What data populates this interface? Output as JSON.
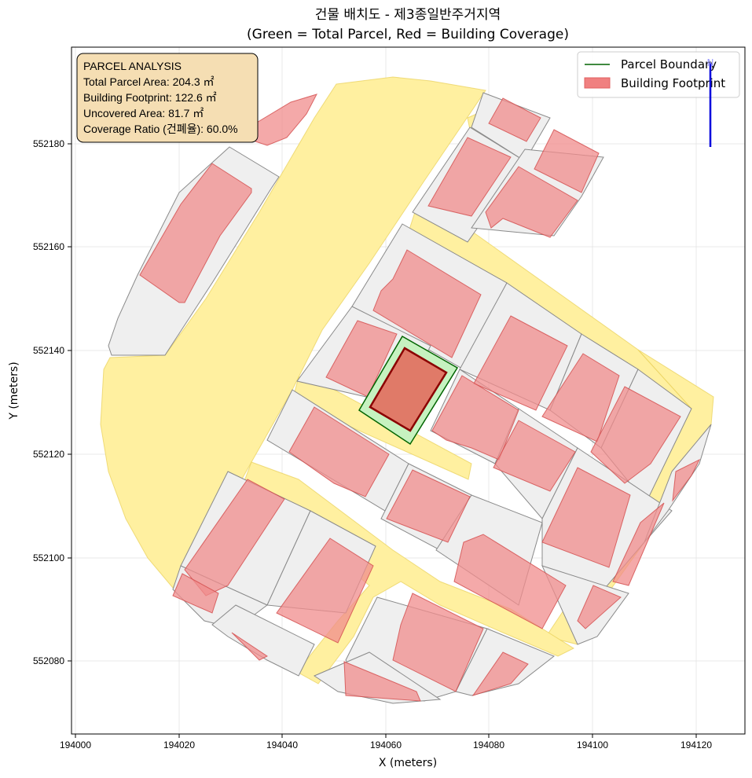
{
  "title": {
    "line1": "건물 배치도 - 제3종일반주거지역",
    "line2": "(Green = Total Parcel, Red = Building Coverage)"
  },
  "axes": {
    "xlabel": "X (meters)",
    "ylabel": "Y (meters)",
    "xticks": [
      "194000",
      "194020",
      "194040",
      "194060",
      "194080",
      "194100",
      "194120"
    ],
    "yticks": [
      "552180",
      "552160",
      "552140",
      "552120",
      "552100",
      "552080"
    ]
  },
  "info_box": {
    "heading": "PARCEL ANALYSIS",
    "line1": "Total Parcel Area: 204.3 ㎡",
    "line2": "Building Footprint: 122.6 ㎡",
    "line3": "Uncovered Area: 81.7 ㎡",
    "line4": "Coverage Ratio (건폐율): 60.0%"
  },
  "legend": {
    "parcel": "Parcel Boundary",
    "building": "Building Footprint"
  },
  "north_arrow": "N",
  "colors": {
    "road": "#fff0a0",
    "lot": "#f0f0f0",
    "footprint": "#f08c8c",
    "target_parcel": "#c6f2c0",
    "parcel_edge": "#006400",
    "target_building": "#e07a68",
    "target_building_edge": "#8b0000",
    "info_box": "#f5deb3",
    "north_arrow": "#0000dd"
  }
}
